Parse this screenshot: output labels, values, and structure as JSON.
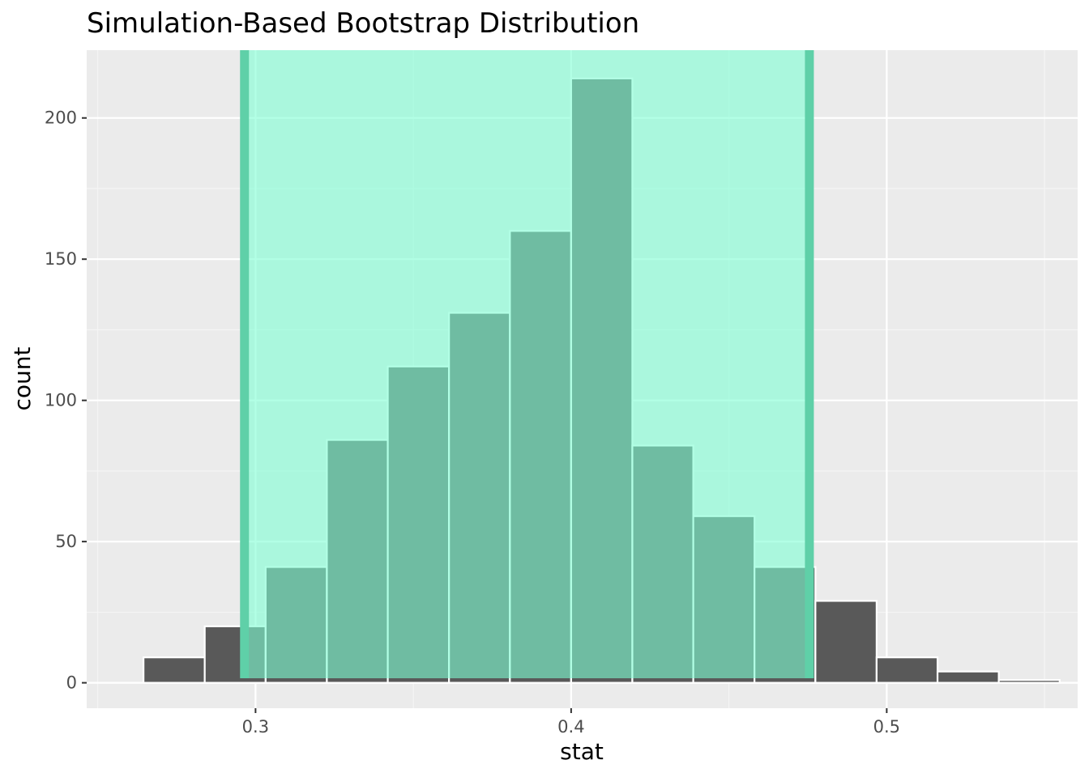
{
  "chart_data": {
    "type": "bar",
    "title": "Simulation-Based Bootstrap Distribution",
    "xlabel": "stat",
    "ylabel": "count",
    "xlim": [
      0.2465,
      0.5605
    ],
    "ylim": [
      -9,
      224
    ],
    "x_ticks": [
      {
        "value": 0.3,
        "label": "0.3"
      },
      {
        "value": 0.4,
        "label": "0.4"
      },
      {
        "value": 0.5,
        "label": "0.5"
      }
    ],
    "y_ticks": [
      {
        "value": 0,
        "label": "0"
      },
      {
        "value": 50,
        "label": "50"
      },
      {
        "value": 100,
        "label": "100"
      },
      {
        "value": 150,
        "label": "150"
      },
      {
        "value": 200,
        "label": "200"
      }
    ],
    "bins": [
      {
        "x0": 0.2645,
        "x1": 0.2839,
        "count": 9
      },
      {
        "x0": 0.2839,
        "x1": 0.3032,
        "count": 20
      },
      {
        "x0": 0.3032,
        "x1": 0.3226,
        "count": 41
      },
      {
        "x0": 0.3226,
        "x1": 0.3419,
        "count": 86
      },
      {
        "x0": 0.3419,
        "x1": 0.3613,
        "count": 112
      },
      {
        "x0": 0.3613,
        "x1": 0.3806,
        "count": 131
      },
      {
        "x0": 0.3806,
        "x1": 0.4,
        "count": 160
      },
      {
        "x0": 0.4,
        "x1": 0.4194,
        "count": 214
      },
      {
        "x0": 0.4194,
        "x1": 0.4387,
        "count": 84
      },
      {
        "x0": 0.4387,
        "x1": 0.4581,
        "count": 59
      },
      {
        "x0": 0.4581,
        "x1": 0.4774,
        "count": 41
      },
      {
        "x0": 0.4774,
        "x1": 0.4968,
        "count": 29
      },
      {
        "x0": 0.4968,
        "x1": 0.5161,
        "count": 9
      },
      {
        "x0": 0.5161,
        "x1": 0.5355,
        "count": 4
      },
      {
        "x0": 0.5355,
        "x1": 0.5548,
        "count": 1
      }
    ],
    "confidence_interval": {
      "lower": 0.2965,
      "upper": 0.4755
    },
    "grid": true,
    "legend": "none"
  },
  "colors": {
    "panel_background": "#EBEBEB",
    "grid_major": "#FFFFFF",
    "grid_minor": "#F5F5F5",
    "bar_fill": "#595959",
    "bar_outline": "#FFFFFF",
    "ci_fill": "#7FFFD4",
    "ci_fill_opacity": 0.6,
    "ci_line": "#5FD0A8",
    "tick_text": "#4D4D4D",
    "tick_mark": "#333333",
    "text": "#000000"
  }
}
